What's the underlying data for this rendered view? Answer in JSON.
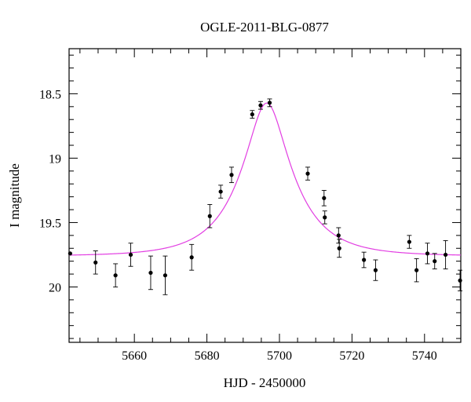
{
  "chart_data": {
    "type": "scatter",
    "title": "OGLE-2011-BLG-0877",
    "xlabel": "HJD - 2450000",
    "ylabel": "I magnitude",
    "xlim": [
      5642,
      5750
    ],
    "ylim": [
      20.43,
      18.15
    ],
    "y_inverted": true,
    "x_ticks": [
      5660,
      5680,
      5700,
      5720,
      5740
    ],
    "x_tick_labels": [
      "5660",
      "5680",
      "5700",
      "5720",
      "5740"
    ],
    "y_ticks": [
      18.5,
      19,
      19.5,
      20
    ],
    "y_tick_labels": [
      "18.5",
      "19",
      "19.5",
      "20"
    ],
    "grid": false,
    "series": [
      {
        "kind": "points-with-errors",
        "color": "#000000",
        "points": [
          {
            "x": 5642.3,
            "y": 19.74,
            "err": 0.0
          },
          {
            "x": 5649.3,
            "y": 19.81,
            "err": 0.09
          },
          {
            "x": 5654.8,
            "y": 19.91,
            "err": 0.09
          },
          {
            "x": 5659.0,
            "y": 19.75,
            "err": 0.09
          },
          {
            "x": 5664.5,
            "y": 19.89,
            "err": 0.13
          },
          {
            "x": 5668.5,
            "y": 19.91,
            "err": 0.15
          },
          {
            "x": 5675.8,
            "y": 19.77,
            "err": 0.1
          },
          {
            "x": 5680.8,
            "y": 19.45,
            "err": 0.09
          },
          {
            "x": 5683.8,
            "y": 19.26,
            "err": 0.05
          },
          {
            "x": 5686.8,
            "y": 19.13,
            "err": 0.06
          },
          {
            "x": 5692.5,
            "y": 18.66,
            "err": 0.03
          },
          {
            "x": 5694.8,
            "y": 18.59,
            "err": 0.03
          },
          {
            "x": 5697.3,
            "y": 18.57,
            "err": 0.03
          },
          {
            "x": 5707.8,
            "y": 19.12,
            "err": 0.05
          },
          {
            "x": 5712.3,
            "y": 19.31,
            "err": 0.06
          },
          {
            "x": 5712.5,
            "y": 19.46,
            "err": 0.05
          },
          {
            "x": 5716.3,
            "y": 19.6,
            "err": 0.06
          },
          {
            "x": 5716.5,
            "y": 19.7,
            "err": 0.07
          },
          {
            "x": 5723.3,
            "y": 19.79,
            "err": 0.06
          },
          {
            "x": 5726.5,
            "y": 19.87,
            "err": 0.08
          },
          {
            "x": 5735.8,
            "y": 19.65,
            "err": 0.05
          },
          {
            "x": 5737.8,
            "y": 19.87,
            "err": 0.09
          },
          {
            "x": 5740.8,
            "y": 19.74,
            "err": 0.08
          },
          {
            "x": 5742.8,
            "y": 19.8,
            "err": 0.06
          },
          {
            "x": 5745.8,
            "y": 19.75,
            "err": 0.11
          },
          {
            "x": 5749.8,
            "y": 19.95,
            "err": 0.08
          }
        ]
      },
      {
        "kind": "model-curve",
        "color": "#e23ee2",
        "model": {
          "t0": 5696.5,
          "tE": 14.0,
          "u0": 0.35,
          "baseline_mag": 19.76
        }
      }
    ]
  }
}
